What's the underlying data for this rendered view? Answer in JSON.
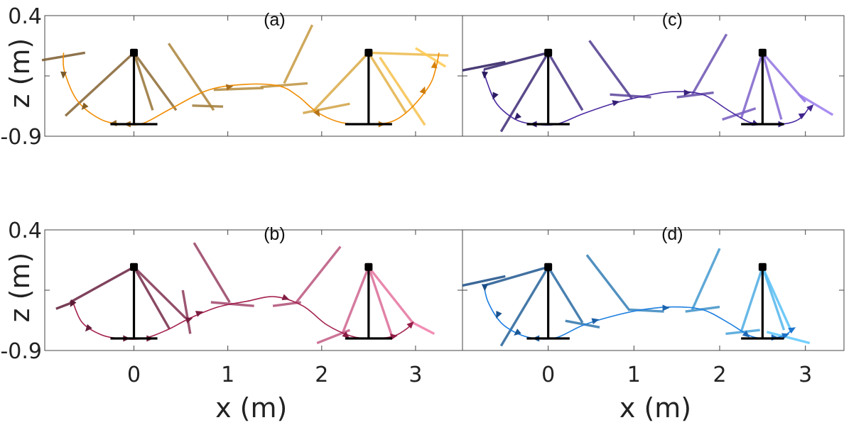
{
  "figure": {
    "xlabel": "x (m)",
    "ylabel": "z (m)",
    "panel_titles": [
      "(a)",
      "(b)",
      "(c)",
      "(d)"
    ]
  },
  "chart_data": [
    {
      "panel": "(a)",
      "type": "line",
      "xlim": [
        -0.95,
        3.5
      ],
      "ylim": [
        -0.9,
        0.4
      ],
      "yticks": [
        0.4,
        -0.9
      ],
      "ytick_labels": [
        "0.4",
        "-0.9"
      ],
      "xticks": [
        0,
        1,
        2,
        3
      ],
      "xtick_labels": [],
      "grid": false,
      "color_start": "#7a5a2e",
      "color_end": "#ffc94d",
      "line_color": "#f08c00",
      "poles": [
        {
          "pivot": [
            0,
            0
          ],
          "base_center": [
            0,
            -0.77
          ],
          "half_width": 0.25
        },
        {
          "pivot": [
            2.5,
            0
          ],
          "base_center": [
            2.5,
            -0.77
          ],
          "half_width": 0.25
        }
      ],
      "trajectory": {
        "x": [
          -0.75,
          -0.74,
          -0.6,
          -0.35,
          -0.1,
          0.1,
          0.4,
          0.8,
          1.2,
          1.55,
          1.75,
          1.95,
          2.2,
          2.5,
          2.75,
          2.95,
          3.15,
          3.22,
          3.25
        ],
        "y": [
          0.0,
          -0.2,
          -0.52,
          -0.72,
          -0.77,
          -0.76,
          -0.6,
          -0.4,
          -0.34,
          -0.36,
          -0.47,
          -0.64,
          -0.75,
          -0.77,
          -0.74,
          -0.6,
          -0.35,
          -0.15,
          0.0
        ]
      },
      "arrows": [
        {
          "x": -0.75,
          "y": -0.22,
          "angle": 265
        },
        {
          "x": -0.52,
          "y": -0.57,
          "angle": 230
        },
        {
          "x": -0.2,
          "y": -0.76,
          "angle": 185
        },
        {
          "x": -0.05,
          "y": -0.77,
          "angle": 180
        },
        {
          "x": 1.0,
          "y": -0.37,
          "angle": 10
        },
        {
          "x": 1.95,
          "y": -0.64,
          "angle": 300
        },
        {
          "x": 2.62,
          "y": -0.77,
          "angle": 0
        },
        {
          "x": 3.08,
          "y": -0.42,
          "angle": 70
        },
        {
          "x": 3.2,
          "y": -0.15,
          "angle": 85
        }
      ],
      "links": [
        {
          "p1": [
            -0.98,
            -0.08
          ],
          "p2": [
            -0.52,
            0.0
          ]
        },
        {
          "p1": [
            0.0,
            0.0
          ],
          "p2": [
            -0.73,
            -0.68
          ]
        },
        {
          "p1": [
            0.0,
            0.0
          ],
          "p2": [
            0.45,
            -0.62
          ]
        },
        {
          "p1": [
            0.0,
            0.0
          ],
          "p2": [
            0.2,
            -0.62
          ]
        },
        {
          "p1": [
            0.62,
            -0.57
          ],
          "p2": [
            0.95,
            -0.58
          ]
        },
        {
          "p1": [
            0.37,
            0.1
          ],
          "p2": [
            0.85,
            -0.62
          ]
        },
        {
          "p1": [
            0.85,
            -0.4
          ],
          "p2": [
            1.38,
            -0.38
          ]
        },
        {
          "p1": [
            1.35,
            -0.37
          ],
          "p2": [
            1.85,
            -0.33
          ]
        },
        {
          "p1": [
            1.9,
            0.3
          ],
          "p2": [
            1.6,
            -0.33
          ]
        },
        {
          "p1": [
            1.8,
            -0.65
          ],
          "p2": [
            2.3,
            -0.55
          ]
        },
        {
          "p1": [
            2.5,
            0.0
          ],
          "p2": [
            1.9,
            -0.64
          ]
        },
        {
          "p1": [
            2.5,
            0.0
          ],
          "p2": [
            2.9,
            -0.65
          ]
        },
        {
          "p1": [
            2.5,
            0.0
          ],
          "p2": [
            3.35,
            -0.03
          ]
        },
        {
          "p1": [
            2.62,
            -0.05
          ],
          "p2": [
            3.1,
            -0.78
          ]
        },
        {
          "p1": [
            3.0,
            0.05
          ],
          "p2": [
            3.32,
            -0.15
          ]
        }
      ]
    },
    {
      "panel": "(b)",
      "type": "line",
      "xlim": [
        -0.95,
        3.5
      ],
      "ylim": [
        -0.9,
        0.4
      ],
      "yticks": [
        0.4,
        -0.9
      ],
      "ytick_labels": [
        "0.4",
        "-0.9"
      ],
      "xticks": [
        0,
        1,
        2,
        3
      ],
      "xtick_labels": [
        "0",
        "1",
        "2",
        "3"
      ],
      "grid": false,
      "color_start": "#5e1a36",
      "color_end": "#f07aa8",
      "line_color": "#a3204e",
      "poles": [
        {
          "pivot": [
            0,
            0
          ],
          "base_center": [
            0,
            -0.77
          ],
          "half_width": 0.25
        },
        {
          "pivot": [
            2.5,
            0
          ],
          "base_center": [
            2.5,
            -0.77
          ],
          "half_width": 0.25
        }
      ],
      "trajectory": {
        "x": [
          -0.65,
          -0.55,
          -0.35,
          -0.15,
          0.1,
          0.35,
          0.6,
          0.9,
          1.2,
          1.5,
          1.8,
          2.05,
          2.3,
          2.5,
          2.75,
          2.9,
          2.97
        ],
        "y": [
          -0.38,
          -0.6,
          -0.73,
          -0.77,
          -0.77,
          -0.68,
          -0.55,
          -0.43,
          -0.37,
          -0.32,
          -0.42,
          -0.62,
          -0.74,
          -0.77,
          -0.75,
          -0.67,
          -0.6
        ]
      },
      "arrows": [
        {
          "x": -0.65,
          "y": -0.38,
          "angle": 240
        },
        {
          "x": -0.48,
          "y": -0.65,
          "angle": 230
        },
        {
          "x": -0.1,
          "y": -0.77,
          "angle": 0
        },
        {
          "x": 0.15,
          "y": -0.77,
          "angle": 0
        },
        {
          "x": 0.57,
          "y": -0.57,
          "angle": 20
        },
        {
          "x": 0.68,
          "y": -0.5,
          "angle": 20
        },
        {
          "x": 1.6,
          "y": -0.33,
          "angle": 340
        },
        {
          "x": 2.25,
          "y": -0.73,
          "angle": 320
        },
        {
          "x": 2.75,
          "y": -0.75,
          "angle": 10
        },
        {
          "x": 2.94,
          "y": -0.63,
          "angle": 45
        }
      ],
      "links": [
        {
          "p1": [
            -0.83,
            -0.45
          ],
          "p2": [
            -0.65,
            -0.38
          ]
        },
        {
          "p1": [
            0.0,
            0.0
          ],
          "p2": [
            -0.68,
            -0.38
          ]
        },
        {
          "p1": [
            0.0,
            0.0
          ],
          "p2": [
            0.38,
            -0.67
          ]
        },
        {
          "p1": [
            0.0,
            0.0
          ],
          "p2": [
            0.55,
            -0.55
          ]
        },
        {
          "p1": [
            0.52,
            -0.25
          ],
          "p2": [
            0.6,
            -0.72
          ]
        },
        {
          "p1": [
            0.64,
            0.26
          ],
          "p2": [
            1.02,
            -0.38
          ]
        },
        {
          "p1": [
            0.82,
            -0.38
          ],
          "p2": [
            1.28,
            -0.42
          ]
        },
        {
          "p1": [
            1.48,
            -0.42
          ],
          "p2": [
            1.78,
            -0.38
          ]
        },
        {
          "p1": [
            2.2,
            0.22
          ],
          "p2": [
            1.73,
            -0.38
          ]
        },
        {
          "p1": [
            1.95,
            -0.82
          ],
          "p2": [
            2.3,
            -0.68
          ]
        },
        {
          "p1": [
            2.5,
            0.0
          ],
          "p2": [
            2.22,
            -0.72
          ]
        },
        {
          "p1": [
            2.5,
            0.0
          ],
          "p2": [
            2.75,
            -0.75
          ]
        },
        {
          "p1": [
            2.5,
            0.0
          ],
          "p2": [
            2.97,
            -0.6
          ]
        },
        {
          "p1": [
            2.97,
            -0.6
          ],
          "p2": [
            3.2,
            -0.72
          ]
        }
      ]
    },
    {
      "panel": "(c)",
      "type": "line",
      "xlim": [
        -1.0,
        3.45
      ],
      "ylim": [
        -0.9,
        0.4
      ],
      "yticks": [
        0.4,
        -0.9
      ],
      "ytick_labels": [],
      "xticks": [
        0,
        1,
        2,
        3
      ],
      "xtick_labels": [],
      "grid": false,
      "color_start": "#2a1a5e",
      "color_end": "#9a7aee",
      "line_color": "#4b2aa0",
      "poles": [
        {
          "pivot": [
            0,
            0
          ],
          "base_center": [
            0,
            -0.77
          ],
          "half_width": 0.25
        },
        {
          "pivot": [
            2.5,
            0
          ],
          "base_center": [
            2.5,
            -0.77
          ],
          "half_width": 0.25
        }
      ],
      "trajectory": {
        "x": [
          -0.75,
          -0.72,
          -0.6,
          -0.38,
          -0.15,
          0.1,
          0.4,
          0.75,
          1.1,
          1.45,
          1.8,
          2.1,
          2.35,
          2.55,
          2.8,
          2.95,
          3.05
        ],
        "y": [
          -0.18,
          -0.3,
          -0.55,
          -0.72,
          -0.77,
          -0.77,
          -0.66,
          -0.55,
          -0.47,
          -0.42,
          -0.45,
          -0.62,
          -0.75,
          -0.77,
          -0.76,
          -0.7,
          -0.58
        ]
      },
      "arrows": [
        {
          "x": -0.74,
          "y": -0.22,
          "angle": 265
        },
        {
          "x": -0.62,
          "y": -0.45,
          "angle": 245
        },
        {
          "x": -0.35,
          "y": -0.68,
          "angle": 225
        },
        {
          "x": -0.15,
          "y": -0.77,
          "angle": 180
        },
        {
          "x": 0.77,
          "y": -0.54,
          "angle": 15
        },
        {
          "x": 1.6,
          "y": -0.43,
          "angle": 0
        },
        {
          "x": 2.4,
          "y": -0.76,
          "angle": 340
        },
        {
          "x": 2.7,
          "y": -0.77,
          "angle": 0
        },
        {
          "x": 2.95,
          "y": -0.68,
          "angle": 30
        },
        {
          "x": 3.05,
          "y": -0.6,
          "angle": 45
        }
      ],
      "links": [
        {
          "p1": [
            -1.0,
            -0.19
          ],
          "p2": [
            -0.5,
            -0.1
          ]
        },
        {
          "p1": [
            0.0,
            0.0
          ],
          "p2": [
            -0.75,
            -0.18
          ]
        },
        {
          "p1": [
            0.0,
            0.0
          ],
          "p2": [
            -0.55,
            -0.85
          ]
        },
        {
          "p1": [
            0.0,
            0.0
          ],
          "p2": [
            0.4,
            -0.62
          ]
        },
        {
          "p1": [
            0.48,
            0.13
          ],
          "p2": [
            0.98,
            -0.5
          ]
        },
        {
          "p1": [
            0.72,
            -0.45
          ],
          "p2": [
            1.2,
            -0.48
          ]
        },
        {
          "p1": [
            1.5,
            -0.48
          ],
          "p2": [
            1.93,
            -0.43
          ]
        },
        {
          "p1": [
            2.08,
            0.2
          ],
          "p2": [
            1.68,
            -0.45
          ]
        },
        {
          "p1": [
            2.03,
            -0.72
          ],
          "p2": [
            2.42,
            -0.6
          ]
        },
        {
          "p1": [
            2.5,
            0.0
          ],
          "p2": [
            2.25,
            -0.71
          ]
        },
        {
          "p1": [
            2.5,
            0.0
          ],
          "p2": [
            2.72,
            -0.72
          ]
        },
        {
          "p1": [
            2.5,
            0.0
          ],
          "p2": [
            3.0,
            -0.53
          ]
        },
        {
          "p1": [
            2.92,
            -0.45
          ],
          "p2": [
            3.32,
            -0.67
          ]
        }
      ]
    },
    {
      "panel": "(d)",
      "type": "line",
      "xlim": [
        -1.0,
        3.45
      ],
      "ylim": [
        -0.9,
        0.4
      ],
      "yticks": [
        0.4,
        -0.9
      ],
      "ytick_labels": [],
      "xticks": [
        0,
        1,
        2,
        3
      ],
      "xtick_labels": [
        "0",
        "1",
        "2",
        "3"
      ],
      "grid": false,
      "color_start": "#1a4e86",
      "color_end": "#5cc8ff",
      "line_color": "#1d7fe0",
      "poles": [
        {
          "pivot": [
            0,
            0
          ],
          "base_center": [
            0,
            -0.77
          ],
          "half_width": 0.25
        },
        {
          "pivot": [
            2.5,
            0
          ],
          "base_center": [
            2.5,
            -0.77
          ],
          "half_width": 0.25
        }
      ],
      "trajectory": {
        "x": [
          -0.75,
          -0.7,
          -0.55,
          -0.35,
          -0.15,
          0.1,
          0.4,
          0.75,
          1.1,
          1.45,
          1.8,
          2.1,
          2.35,
          2.55,
          2.75,
          2.85
        ],
        "y": [
          -0.2,
          -0.38,
          -0.6,
          -0.72,
          -0.77,
          -0.76,
          -0.63,
          -0.53,
          -0.46,
          -0.43,
          -0.46,
          -0.6,
          -0.74,
          -0.77,
          -0.74,
          -0.67
        ]
      },
      "arrows": [
        {
          "x": -0.74,
          "y": -0.2,
          "angle": 270
        },
        {
          "x": -0.58,
          "y": -0.5,
          "angle": 245
        },
        {
          "x": -0.35,
          "y": -0.7,
          "angle": 220
        },
        {
          "x": -0.12,
          "y": -0.77,
          "angle": 180
        },
        {
          "x": 0.53,
          "y": -0.58,
          "angle": 15
        },
        {
          "x": 1.35,
          "y": -0.44,
          "angle": 0
        },
        {
          "x": 2.3,
          "y": -0.72,
          "angle": 320
        },
        {
          "x": 2.62,
          "y": -0.76,
          "angle": 0
        },
        {
          "x": 2.75,
          "y": -0.74,
          "angle": 20
        },
        {
          "x": 2.83,
          "y": -0.68,
          "angle": 30
        }
      ],
      "links": [
        {
          "p1": [
            -1.0,
            -0.2
          ],
          "p2": [
            -0.5,
            -0.1
          ]
        },
        {
          "p1": [
            0.0,
            0.0
          ],
          "p2": [
            -0.75,
            -0.2
          ]
        },
        {
          "p1": [
            0.0,
            0.0
          ],
          "p2": [
            -0.55,
            -0.85
          ]
        },
        {
          "p1": [
            0.0,
            0.0
          ],
          "p2": [
            0.4,
            -0.6
          ]
        },
        {
          "p1": [
            0.2,
            -0.58
          ],
          "p2": [
            0.6,
            -0.65
          ]
        },
        {
          "p1": [
            0.45,
            0.13
          ],
          "p2": [
            0.95,
            -0.47
          ]
        },
        {
          "p1": [
            0.95,
            -0.46
          ],
          "p2": [
            1.35,
            -0.48
          ]
        },
        {
          "p1": [
            1.6,
            -0.48
          ],
          "p2": [
            2.0,
            -0.43
          ]
        },
        {
          "p1": [
            2.0,
            0.2
          ],
          "p2": [
            1.68,
            -0.46
          ]
        },
        {
          "p1": [
            2.07,
            -0.72
          ],
          "p2": [
            2.47,
            -0.68
          ]
        },
        {
          "p1": [
            2.5,
            0.0
          ],
          "p2": [
            2.25,
            -0.7
          ]
        },
        {
          "p1": [
            2.5,
            0.0
          ],
          "p2": [
            2.75,
            -0.68
          ]
        },
        {
          "p1": [
            2.5,
            0.0
          ],
          "p2": [
            2.83,
            -0.68
          ]
        },
        {
          "p1": [
            2.55,
            -0.7
          ],
          "p2": [
            3.05,
            -0.82
          ]
        }
      ]
    }
  ]
}
